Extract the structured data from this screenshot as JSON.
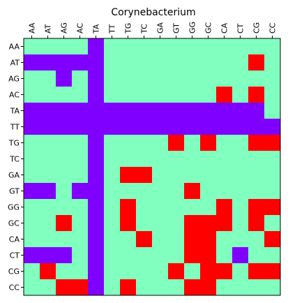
{
  "chart_data": {
    "type": "heatmap",
    "title": "Corynebacterium",
    "xlabel": "",
    "ylabel": "",
    "x_tick_labels": [
      "AA",
      "AT",
      "AG",
      "AC",
      "TA",
      "TT",
      "TG",
      "TC",
      "GA",
      "GT",
      "GG",
      "GC",
      "CA",
      "CT",
      "CG",
      "CC"
    ],
    "y_tick_labels": [
      "AA",
      "AT",
      "AG",
      "AC",
      "TA",
      "TT",
      "TG",
      "TC",
      "GA",
      "GT",
      "GG",
      "GC",
      "CA",
      "CT",
      "CG",
      "CC"
    ],
    "x_axis_position": "top",
    "grid": false,
    "legend": "none",
    "value_colors": {
      "0": "#80ffbf",
      "1": "#8000ff",
      "2": "#ff0000"
    },
    "values": [
      [
        0,
        0,
        0,
        0,
        1,
        0,
        0,
        0,
        0,
        0,
        0,
        0,
        0,
        0,
        0,
        0
      ],
      [
        1,
        1,
        1,
        1,
        1,
        0,
        0,
        0,
        0,
        0,
        0,
        0,
        0,
        0,
        2,
        0
      ],
      [
        0,
        0,
        1,
        0,
        1,
        0,
        0,
        0,
        0,
        0,
        0,
        0,
        0,
        0,
        0,
        0
      ],
      [
        0,
        0,
        0,
        0,
        1,
        0,
        0,
        0,
        0,
        0,
        0,
        0,
        2,
        0,
        2,
        0
      ],
      [
        1,
        1,
        1,
        1,
        1,
        1,
        1,
        1,
        1,
        1,
        1,
        1,
        1,
        1,
        1,
        0
      ],
      [
        1,
        1,
        1,
        1,
        1,
        1,
        1,
        1,
        1,
        1,
        1,
        1,
        1,
        1,
        1,
        1
      ],
      [
        0,
        0,
        0,
        0,
        1,
        0,
        0,
        0,
        0,
        2,
        0,
        2,
        0,
        0,
        2,
        2
      ],
      [
        0,
        0,
        0,
        0,
        1,
        0,
        0,
        0,
        0,
        0,
        0,
        0,
        0,
        0,
        0,
        0
      ],
      [
        0,
        0,
        0,
        0,
        1,
        0,
        2,
        2,
        0,
        0,
        0,
        0,
        0,
        0,
        0,
        0
      ],
      [
        1,
        1,
        0,
        1,
        1,
        0,
        0,
        0,
        0,
        0,
        2,
        0,
        0,
        0,
        0,
        0
      ],
      [
        0,
        0,
        0,
        0,
        1,
        0,
        2,
        0,
        0,
        0,
        0,
        0,
        2,
        0,
        2,
        2
      ],
      [
        0,
        0,
        2,
        0,
        1,
        0,
        2,
        0,
        0,
        0,
        2,
        2,
        2,
        0,
        2,
        0
      ],
      [
        0,
        0,
        0,
        0,
        1,
        0,
        0,
        2,
        0,
        0,
        2,
        2,
        0,
        0,
        0,
        2
      ],
      [
        1,
        1,
        1,
        0,
        1,
        0,
        0,
        0,
        0,
        0,
        2,
        2,
        0,
        1,
        0,
        0
      ],
      [
        0,
        2,
        0,
        0,
        1,
        0,
        0,
        0,
        0,
        2,
        0,
        2,
        2,
        0,
        2,
        2
      ],
      [
        0,
        0,
        2,
        2,
        1,
        0,
        2,
        0,
        0,
        0,
        2,
        2,
        0,
        0,
        0,
        0
      ]
    ]
  }
}
